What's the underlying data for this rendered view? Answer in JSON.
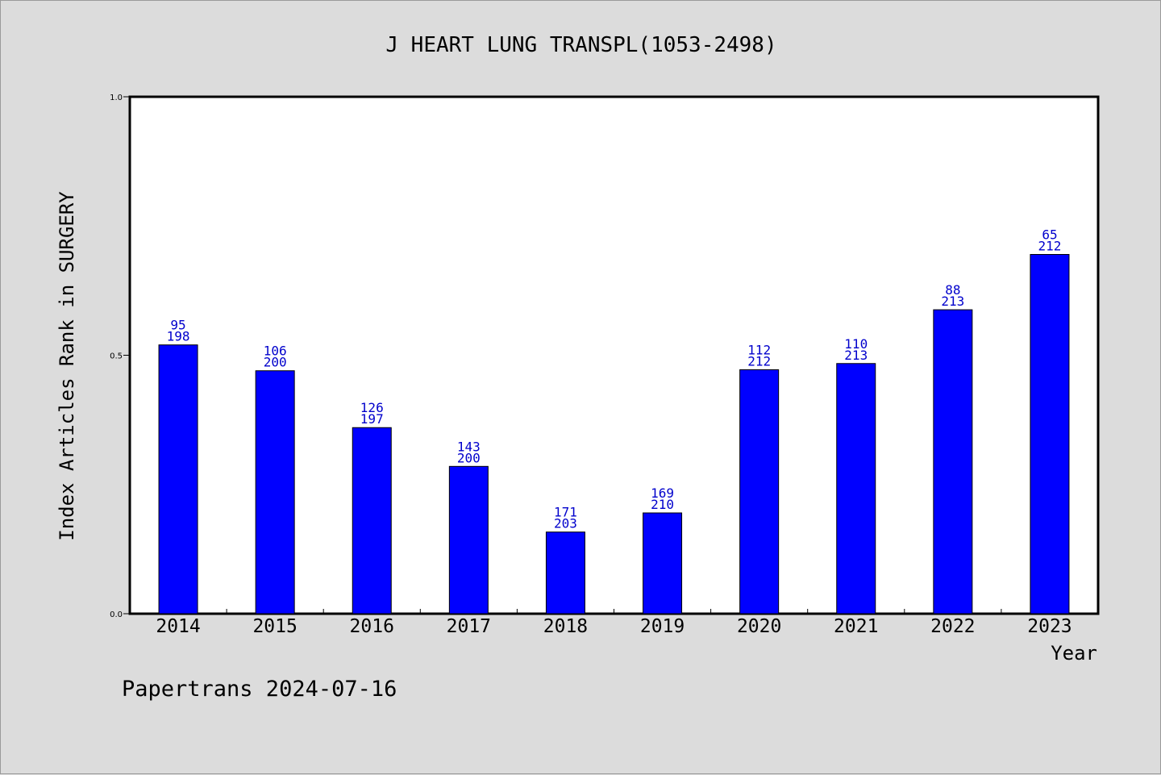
{
  "chart_data": {
    "type": "bar",
    "title": "J HEART LUNG TRANSPL(1053-2498)",
    "xlabel": "Year",
    "ylabel": "Index Articles Rank in SURGERY",
    "ylim": [
      0.0,
      1.0
    ],
    "yticks": [
      "0.0",
      "0.5",
      "1.0"
    ],
    "categories": [
      "2014",
      "2015",
      "2016",
      "2017",
      "2018",
      "2019",
      "2020",
      "2021",
      "2022",
      "2023"
    ],
    "values": [
      0.52,
      0.47,
      0.36,
      0.285,
      0.158,
      0.195,
      0.472,
      0.484,
      0.588,
      0.695
    ],
    "labels_top": [
      "95",
      "106",
      "126",
      "143",
      "171",
      "169",
      "112",
      "110",
      "88",
      "65"
    ],
    "labels_bottom": [
      "198",
      "200",
      "197",
      "200",
      "203",
      "210",
      "212",
      "213",
      "213",
      "212"
    ],
    "bar_color": "#0000ff",
    "label_color": "#0000cc",
    "grid": false,
    "legend": "none"
  },
  "footer": {
    "text": "Papertrans 2024-07-16"
  },
  "colors": {
    "background": "#dcdcdc",
    "plot_area": "#ffffff",
    "axis": "#000000"
  }
}
